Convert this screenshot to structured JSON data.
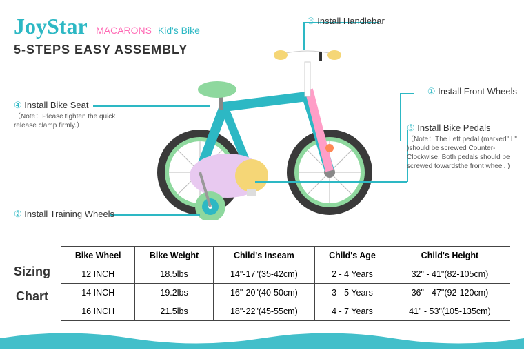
{
  "header": {
    "logo_main": "JoyStar",
    "logo_sub1": "MACARONS ",
    "logo_sub2": "Kid's Bike",
    "tagline": "5-STEPS EASY ASSEMBLY",
    "logo_color": "#2db8c4",
    "sub1_color": "#ff9ec7",
    "sub2_color": "#2db8c4"
  },
  "callouts": {
    "c1": {
      "num": "①",
      "text": "Install Front Wheels"
    },
    "c2": {
      "num": "②",
      "text": "Install Training Wheels"
    },
    "c3": {
      "num": "③",
      "text": "Install Handlebar"
    },
    "c4": {
      "num": "④",
      "text": "Install Bike Seat",
      "note": "（Note：Please tighten the quick release clamp firmly.）"
    },
    "c5": {
      "num": "⑤",
      "text": "Install Bike Pedals",
      "note": "（Note：The Left pedal (marked\" L\" )should be screwed Counter-Clockwise. Both pedals should be screwed towardsthe front wheel. )"
    }
  },
  "table": {
    "label1": "Sizing",
    "label2": "Chart",
    "headers": [
      "Bike Wheel",
      "Bike Weight",
      "Child's Inseam",
      "Child's Age",
      "Child's Height"
    ],
    "rows": [
      [
        "12 INCH",
        "18.5lbs",
        "14\"-17\"(35-42cm)",
        "2 - 4 Years",
        "32\" - 41\"(82-105cm)"
      ],
      [
        "14 INCH",
        "19.2lbs",
        "16\"-20\"(40-50cm)",
        "3 - 5 Years",
        "36\" - 47\"(92-120cm)"
      ],
      [
        "16 INCH",
        "21.5lbs",
        "18\"-22\"(45-55cm)",
        "4 - 7 Years",
        "41\" - 53\"(105-135cm)"
      ]
    ]
  },
  "bike": {
    "frame_color": "#2db8c4",
    "fork_color": "#ff9ec7",
    "seat_color": "#8ed89e",
    "chainguard_color": "#e8c9f0",
    "grip_color": "#f5d676",
    "tire_color": "#3a3a3a",
    "rim_color": "#8ed89e",
    "training_wheel_color": "#8ed89e",
    "training_hub_color": "#2db8c4",
    "pedal_hub_color": "#f5d676",
    "handlebar_color": "#ffffff",
    "reflector_color": "#ff8855"
  },
  "wave_color": "#2db8c4"
}
